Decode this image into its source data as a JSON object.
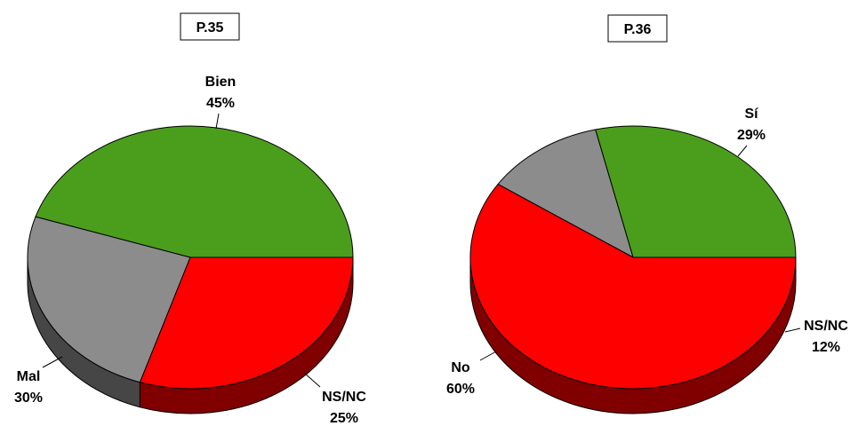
{
  "chart_data": [
    {
      "type": "pie",
      "title": "P.35",
      "slices": [
        {
          "name": "Bien",
          "value": 45,
          "label": "45%",
          "color": "#4a9e1c"
        },
        {
          "name": "NS/NC",
          "value": 25,
          "label": "25%",
          "color": "#8c8c8c"
        },
        {
          "name": "Mal",
          "value": 30,
          "label": "30%",
          "color": "#ff0000"
        }
      ]
    },
    {
      "type": "pie",
      "title": "P.36",
      "slices": [
        {
          "name": "Sí",
          "value": 29,
          "label": "29%",
          "color": "#4a9e1c"
        },
        {
          "name": "NS/NC",
          "value": 12,
          "label": "12%",
          "color": "#8c8c8c"
        },
        {
          "name": "No",
          "value": 60,
          "label": "60%",
          "color": "#ff0000"
        }
      ]
    }
  ]
}
